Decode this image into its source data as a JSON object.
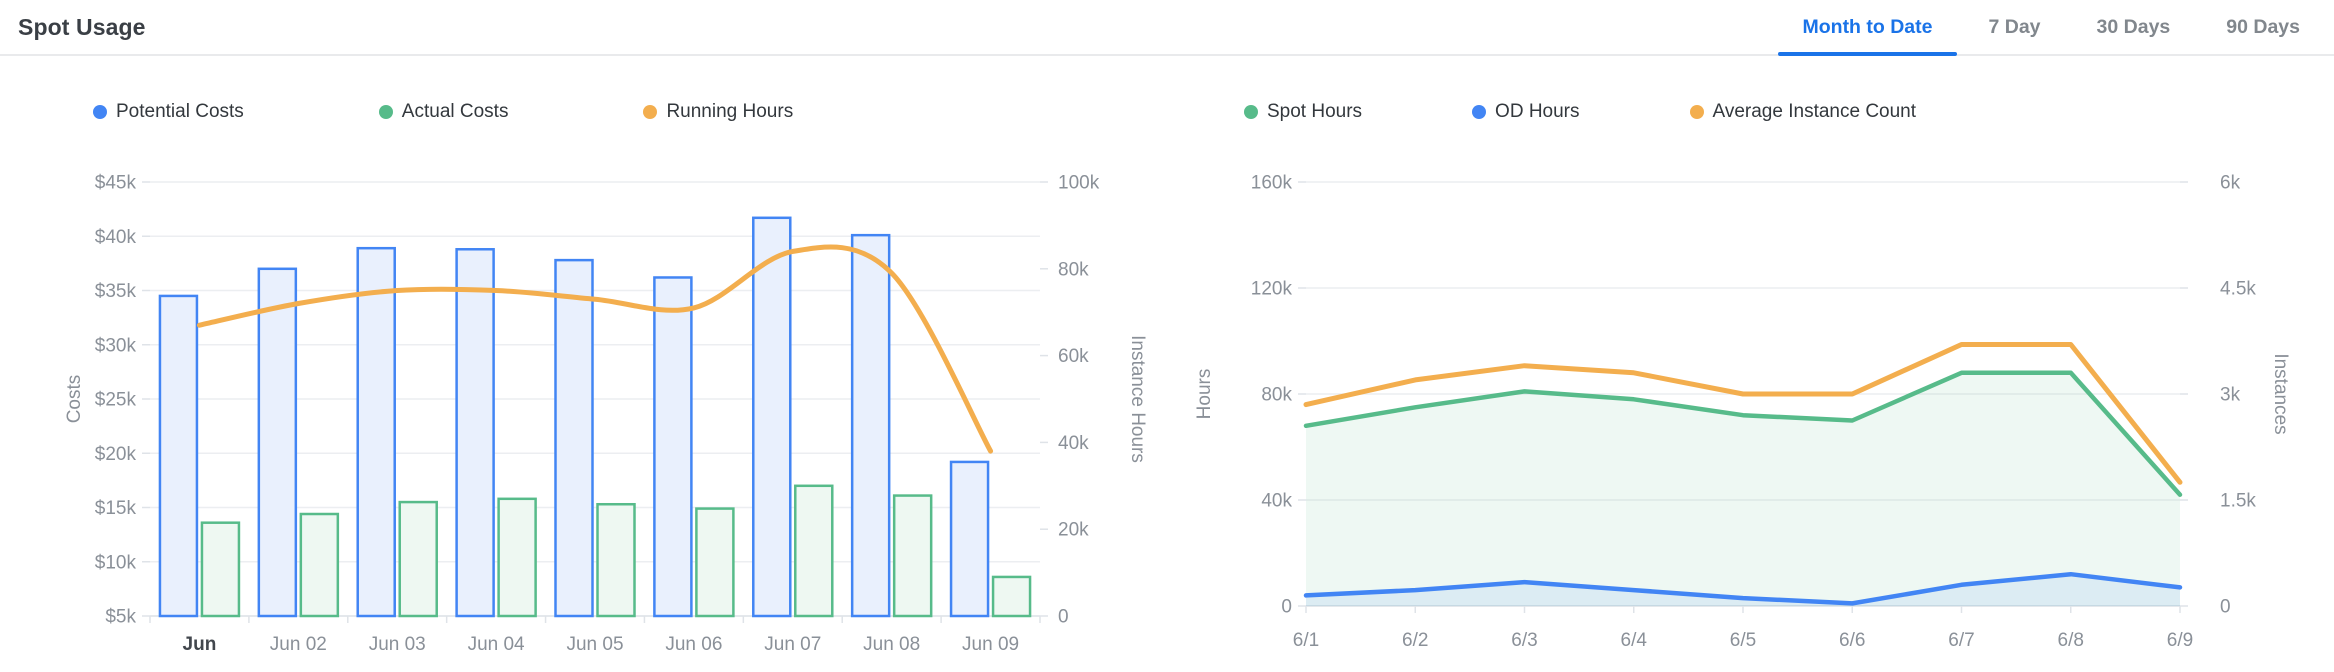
{
  "header": {
    "title": "Spot Usage",
    "tabs": [
      {
        "label": "Month to Date",
        "active": true
      },
      {
        "label": "7 Day",
        "active": false
      },
      {
        "label": "30 Days",
        "active": false
      },
      {
        "label": "90 Days",
        "active": false
      }
    ]
  },
  "colors": {
    "blue": "#4285f4",
    "blue_fill": "#e9f0fd",
    "blue_area": "rgba(66,133,244,0.10)",
    "green": "#57bb8a",
    "green_fill": "#eef8f2",
    "green_area": "rgba(87,187,138,0.10)",
    "orange": "#f3ae4e",
    "active_tab": "#1a73e8",
    "grid": "#eceef1",
    "axis_line": "#dfe3e8",
    "tick_text": "#8a9098",
    "dark_text": "#42474d"
  },
  "chart_data": [
    {
      "id": "costs",
      "type": "bar",
      "subtype": "grouped-bars-with-line",
      "title": "Spot Usage - Costs and Running Hours",
      "categories": [
        "Jun",
        "Jun 02",
        "Jun 03",
        "Jun 04",
        "Jun 05",
        "Jun 06",
        "Jun 07",
        "Jun 08",
        "Jun 09"
      ],
      "unit": "thousands",
      "series": [
        {
          "name": "Potential Costs",
          "type": "bar",
          "axis": "left",
          "color": "blue",
          "values_k": [
            34.5,
            37.0,
            38.9,
            38.8,
            37.8,
            36.2,
            41.7,
            40.1,
            19.2
          ]
        },
        {
          "name": "Actual Costs",
          "type": "bar",
          "axis": "left",
          "color": "green",
          "values_k": [
            13.6,
            14.4,
            15.5,
            15.8,
            15.3,
            14.9,
            17.0,
            16.1,
            8.6
          ]
        },
        {
          "name": "Running Hours",
          "type": "line",
          "axis": "right",
          "color": "orange",
          "smooth": true,
          "values_k": [
            67,
            72,
            75,
            75,
            73,
            71,
            84,
            79,
            38
          ]
        }
      ],
      "left_axis": {
        "name": "Costs",
        "min": 5,
        "max": 45,
        "ticks": [
          {
            "v": 5,
            "label": "$5k"
          },
          {
            "v": 10,
            "label": "$10k"
          },
          {
            "v": 15,
            "label": "$15k"
          },
          {
            "v": 20,
            "label": "$20k"
          },
          {
            "v": 25,
            "label": "$25k"
          },
          {
            "v": 30,
            "label": "$30k"
          },
          {
            "v": 35,
            "label": "$35k"
          },
          {
            "v": 40,
            "label": "$40k"
          },
          {
            "v": 45,
            "label": "$45k"
          }
        ]
      },
      "right_axis": {
        "name": "Instance Hours",
        "min": 0,
        "max": 100,
        "ticks": [
          {
            "v": 0,
            "label": "0"
          },
          {
            "v": 20,
            "label": "20k"
          },
          {
            "v": 40,
            "label": "40k"
          },
          {
            "v": 60,
            "label": "60k"
          },
          {
            "v": 80,
            "label": "80k"
          },
          {
            "v": 100,
            "label": "100k"
          }
        ]
      },
      "first_x_label_emphasis": true,
      "grid": true,
      "legend_position": "top"
    },
    {
      "id": "usage-hours",
      "type": "area",
      "subtype": "stacked-look-areas-with-line",
      "title": "Spot Usage - Hours and Instances",
      "categories": [
        "6/1",
        "6/2",
        "6/3",
        "6/4",
        "6/5",
        "6/6",
        "6/7",
        "6/8",
        "6/9"
      ],
      "unit": "thousands",
      "series": [
        {
          "name": "Spot Hours",
          "type": "area",
          "axis": "left",
          "color": "green",
          "values_k": [
            68,
            75,
            81,
            78,
            72,
            70,
            88,
            88,
            42
          ]
        },
        {
          "name": "OD Hours",
          "type": "area",
          "axis": "left",
          "color": "blue",
          "values_k": [
            4,
            6,
            9,
            6,
            3,
            1,
            8,
            12,
            7
          ]
        },
        {
          "name": "Average Instance Count",
          "type": "line",
          "axis": "right",
          "color": "orange",
          "values_k": [
            2.85,
            3.2,
            3.4,
            3.3,
            3.0,
            3.0,
            3.7,
            3.7,
            1.75
          ]
        }
      ],
      "left_axis": {
        "name": "Hours",
        "min": 0,
        "max": 160,
        "ticks": [
          {
            "v": 0,
            "label": "0"
          },
          {
            "v": 40,
            "label": "40k"
          },
          {
            "v": 80,
            "label": "80k"
          },
          {
            "v": 120,
            "label": "120k"
          },
          {
            "v": 160,
            "label": "160k"
          }
        ]
      },
      "right_axis": {
        "name": "Instances",
        "min": 0,
        "max": 6,
        "ticks": [
          {
            "v": 0,
            "label": "0"
          },
          {
            "v": 1.5,
            "label": "1.5k"
          },
          {
            "v": 3,
            "label": "3k"
          },
          {
            "v": 4.5,
            "label": "4.5k"
          },
          {
            "v": 6,
            "label": "6k"
          }
        ]
      },
      "first_x_label_emphasis": false,
      "grid": true,
      "legend_position": "top"
    }
  ]
}
